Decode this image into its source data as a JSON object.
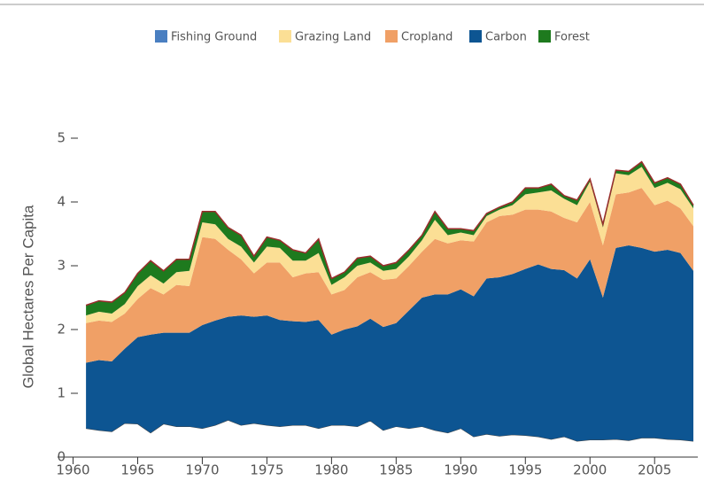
{
  "chart_data": {
    "type": "stacked_area",
    "ylabel": "Global Hectares Per Capita",
    "x": [
      1961,
      1962,
      1963,
      1964,
      1965,
      1966,
      1967,
      1968,
      1969,
      1970,
      1971,
      1972,
      1973,
      1974,
      1975,
      1976,
      1977,
      1978,
      1979,
      1980,
      1981,
      1982,
      1983,
      1984,
      1985,
      1986,
      1987,
      1988,
      1989,
      1990,
      1991,
      1992,
      1993,
      1994,
      1995,
      1996,
      1997,
      1998,
      1999,
      2000,
      2001,
      2002,
      2003,
      2004,
      2005,
      2006,
      2007,
      2008
    ],
    "series": [
      {
        "name": "Fishing Ground",
        "color": "#4a7fc1",
        "fill": "#ffffff",
        "edge": "#444444",
        "values": [
          0.45,
          0.42,
          0.4,
          0.53,
          0.52,
          0.38,
          0.52,
          0.48,
          0.48,
          0.45,
          0.5,
          0.58,
          0.5,
          0.53,
          0.5,
          0.48,
          0.5,
          0.5,
          0.45,
          0.5,
          0.5,
          0.48,
          0.57,
          0.42,
          0.48,
          0.45,
          0.48,
          0.42,
          0.38,
          0.45,
          0.32,
          0.36,
          0.33,
          0.35,
          0.34,
          0.32,
          0.28,
          0.32,
          0.25,
          0.27,
          0.27,
          0.28,
          0.26,
          0.3,
          0.3,
          0.28,
          0.27,
          0.25
        ]
      },
      {
        "name": "Grazing Land",
        "color": "#fbdf95",
        "fill": "#fbdf95",
        "values": [
          0.12,
          0.14,
          0.13,
          0.15,
          0.2,
          0.2,
          0.17,
          0.2,
          0.24,
          0.23,
          0.23,
          0.17,
          0.2,
          0.17,
          0.25,
          0.23,
          0.26,
          0.2,
          0.3,
          0.15,
          0.2,
          0.18,
          0.15,
          0.14,
          0.15,
          0.15,
          0.18,
          0.3,
          0.13,
          0.12,
          0.1,
          0.1,
          0.1,
          0.15,
          0.24,
          0.27,
          0.33,
          0.3,
          0.27,
          0.32,
          0.28,
          0.33,
          0.27,
          0.33,
          0.27,
          0.28,
          0.3,
          0.28
        ]
      },
      {
        "name": "Cropland",
        "color": "#f0a066",
        "fill": "#f0a066",
        "values": [
          0.62,
          0.62,
          0.62,
          0.55,
          0.6,
          0.73,
          0.6,
          0.75,
          0.73,
          1.38,
          1.28,
          1.05,
          0.88,
          0.68,
          0.83,
          0.9,
          0.69,
          0.76,
          0.75,
          0.63,
          0.62,
          0.77,
          0.73,
          0.74,
          0.7,
          0.7,
          0.72,
          0.87,
          0.8,
          0.77,
          0.86,
          0.88,
          0.96,
          0.93,
          0.93,
          0.86,
          0.9,
          0.82,
          0.88,
          0.9,
          0.82,
          0.84,
          0.83,
          0.94,
          0.73,
          0.77,
          0.7,
          0.7
        ]
      },
      {
        "name": "Carbon",
        "color": "#0d5592",
        "fill": "#0d5592",
        "values": [
          1.03,
          1.1,
          1.1,
          1.17,
          1.36,
          1.54,
          1.43,
          1.47,
          1.47,
          1.62,
          1.64,
          1.62,
          1.72,
          1.67,
          1.72,
          1.67,
          1.63,
          1.62,
          1.7,
          1.42,
          1.5,
          1.57,
          1.6,
          1.62,
          1.62,
          1.85,
          2.02,
          2.13,
          2.17,
          2.18,
          2.2,
          2.44,
          2.49,
          2.52,
          2.61,
          2.7,
          2.67,
          2.61,
          2.55,
          2.83,
          2.23,
          3.0,
          3.06,
          2.98,
          2.92,
          2.97,
          2.93,
          2.67
        ]
      },
      {
        "name": "Forest",
        "color": "#1e7a1e",
        "fill": "#1e7a1e",
        "values": [
          0.16,
          0.17,
          0.18,
          0.18,
          0.2,
          0.23,
          0.2,
          0.2,
          0.18,
          0.17,
          0.2,
          0.18,
          0.18,
          0.1,
          0.15,
          0.12,
          0.17,
          0.12,
          0.22,
          0.1,
          0.08,
          0.12,
          0.1,
          0.08,
          0.1,
          0.1,
          0.08,
          0.13,
          0.1,
          0.06,
          0.07,
          0.04,
          0.04,
          0.05,
          0.1,
          0.07,
          0.1,
          0.05,
          0.08,
          0.04,
          0.05,
          0.05,
          0.06,
          0.08,
          0.08,
          0.08,
          0.08,
          0.05
        ]
      }
    ],
    "stack_order": [
      0,
      3,
      2,
      1,
      4
    ],
    "top_line_color": "#9b2c2c",
    "xlim": [
      1958.8,
      2008
    ],
    "xticks": [
      1960,
      1965,
      1970,
      1975,
      1980,
      1985,
      1990,
      1995,
      2000,
      2005
    ],
    "ylim": [
      0,
      5
    ],
    "yticks": [
      0,
      1,
      2,
      3,
      4,
      5
    ]
  }
}
